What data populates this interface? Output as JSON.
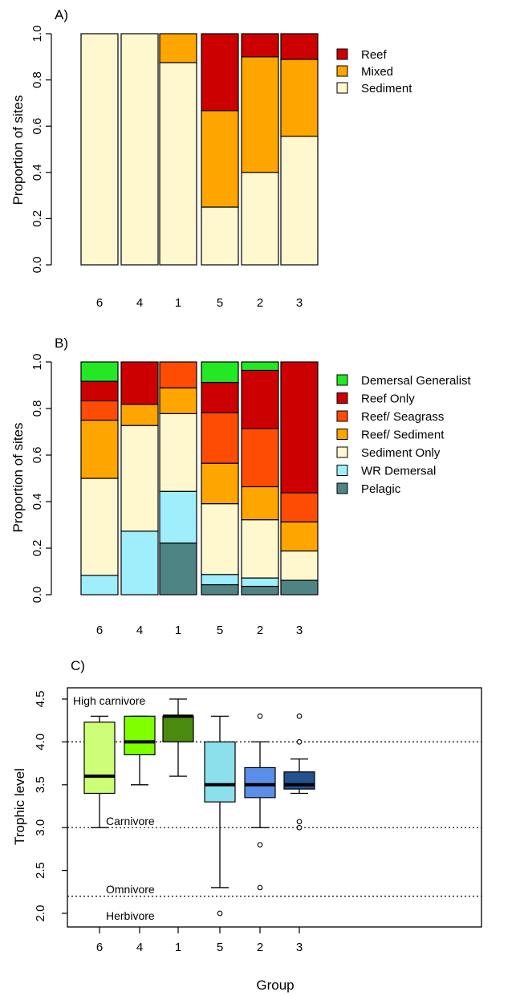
{
  "chart_data": [
    {
      "panel": "A)",
      "type": "bar",
      "stacked": true,
      "ylabel": "Proportion of sites",
      "xlabel": "",
      "ylim": [
        0,
        1
      ],
      "yticks": [
        "0.0",
        "0.2",
        "0.4",
        "0.6",
        "0.8",
        "1.0"
      ],
      "categories": [
        "6",
        "4",
        "1",
        "5",
        "2",
        "3"
      ],
      "legend_position": "right",
      "series": [
        {
          "name": "Sediment",
          "color": "#fff8cf",
          "values": [
            1.0,
            1.0,
            0.875,
            0.25,
            0.4,
            0.556
          ]
        },
        {
          "name": "Mixed",
          "color": "#ffa500",
          "values": [
            0.0,
            0.0,
            0.125,
            0.417,
            0.5,
            0.333
          ]
        },
        {
          "name": "Reef",
          "color": "#cc0000",
          "values": [
            0.0,
            0.0,
            0.0,
            0.333,
            0.1,
            0.111
          ]
        }
      ]
    },
    {
      "panel": "B)",
      "type": "bar",
      "stacked": true,
      "ylabel": "Proportion of sites",
      "xlabel": "",
      "ylim": [
        0,
        1
      ],
      "yticks": [
        "0.0",
        "0.2",
        "0.4",
        "0.6",
        "0.8",
        "1.0"
      ],
      "categories": [
        "6",
        "4",
        "1",
        "5",
        "2",
        "3"
      ],
      "legend_position": "right",
      "series": [
        {
          "name": "Pelagic",
          "color": "#4f8484",
          "values": [
            0.0,
            0.0,
            0.222,
            0.043,
            0.036,
            0.062
          ]
        },
        {
          "name": "WR Demersal",
          "color": "#9eeefc",
          "values": [
            0.083,
            0.273,
            0.222,
            0.044,
            0.036,
            0.0
          ]
        },
        {
          "name": "Sediment Only",
          "color": "#fff8cf",
          "values": [
            0.417,
            0.454,
            0.334,
            0.304,
            0.25,
            0.126
          ]
        },
        {
          "name": "Reef/ Sediment",
          "color": "#ffa500",
          "values": [
            0.25,
            0.091,
            0.111,
            0.174,
            0.142,
            0.125
          ]
        },
        {
          "name": "Reef/ Seagrass",
          "color": "#ff4c05",
          "values": [
            0.083,
            0.0,
            0.111,
            0.217,
            0.25,
            0.125
          ]
        },
        {
          "name": "Reef Only",
          "color": "#cc0000",
          "values": [
            0.084,
            0.182,
            0.0,
            0.13,
            0.25,
            0.562
          ]
        },
        {
          "name": "Demersal Generalist",
          "color": "#23e823",
          "values": [
            0.083,
            0.0,
            0.0,
            0.088,
            0.036,
            0.0
          ]
        }
      ]
    },
    {
      "panel": "C)",
      "type": "boxplot",
      "xlabel": "Group",
      "ylabel": "Trophic level",
      "ylim": [
        1.9,
        4.6
      ],
      "yticks": [
        "2.0",
        "2.5",
        "3.0",
        "3.5",
        "4.0",
        "4.5"
      ],
      "categories": [
        "6",
        "4",
        "1",
        "5",
        "2",
        "3"
      ],
      "boxes": [
        {
          "group": "6",
          "color": "#ccff77",
          "whisker_low": 3.0,
          "q1": 3.4,
          "median": 3.6,
          "q3": 4.23,
          "whisker_high": 4.3,
          "outliers": []
        },
        {
          "group": "4",
          "color": "#80ff00",
          "whisker_low": 3.5,
          "q1": 3.85,
          "median": 4.0,
          "q3": 4.3,
          "whisker_high": 4.3,
          "outliers": []
        },
        {
          "group": "1",
          "color": "#4a8a0e",
          "whisker_low": 3.6,
          "q1": 4.0,
          "median": 4.3,
          "q3": 4.3,
          "whisker_high": 4.5,
          "outliers": []
        },
        {
          "group": "5",
          "color": "#8ce0ec",
          "whisker_low": 2.3,
          "q1": 3.3,
          "median": 3.5,
          "q3": 4.0,
          "whisker_high": 4.3,
          "outliers": [
            2.0
          ]
        },
        {
          "group": "2",
          "color": "#5b8ee8",
          "whisker_low": 3.0,
          "q1": 3.35,
          "median": 3.5,
          "q3": 3.7,
          "whisker_high": 4.0,
          "outliers": [
            2.3,
            2.8,
            4.3
          ]
        },
        {
          "group": "3",
          "color": "#23528f",
          "whisker_low": 3.4,
          "q1": 3.45,
          "median": 3.5,
          "q3": 3.65,
          "whisker_high": 3.8,
          "outliers": [
            3.0,
            3.07,
            4.0,
            4.3
          ]
        }
      ],
      "reference_lines": [
        {
          "y": 4.0,
          "label": "High carnivore",
          "style": "dotted"
        },
        {
          "y": 3.0,
          "label": "Carnivore",
          "style": "dotted"
        },
        {
          "y": 2.2,
          "label": "Omnivore",
          "style": "dotted"
        }
      ],
      "annotations": [
        "Herbivore"
      ]
    }
  ]
}
